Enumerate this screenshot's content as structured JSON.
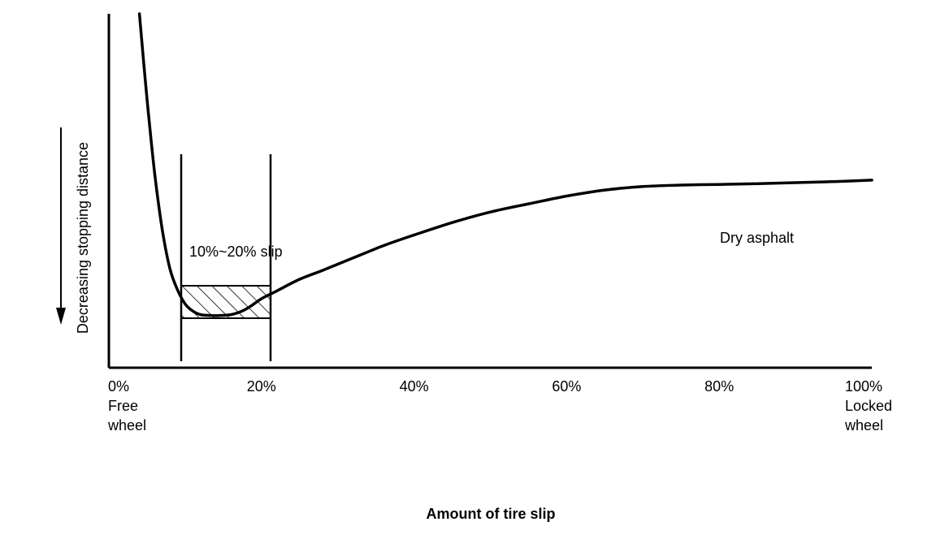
{
  "chart_data": {
    "type": "line",
    "title": "",
    "xlabel": "Amount of tire slip",
    "ylabel": "Decreasing stopping distance",
    "xlim": [
      0,
      100
    ],
    "x_ticks": [
      {
        "value": 0,
        "label": "0%",
        "sublabel": [
          "Free",
          "wheel"
        ]
      },
      {
        "value": 20,
        "label": "20%",
        "sublabel": []
      },
      {
        "value": 40,
        "label": "40%",
        "sublabel": []
      },
      {
        "value": 60,
        "label": "60%",
        "sublabel": []
      },
      {
        "value": 80,
        "label": "80%",
        "sublabel": []
      },
      {
        "value": 100,
        "label": "100%",
        "sublabel": [
          "Locked",
          "wheel"
        ]
      }
    ],
    "grid": false,
    "legend": "none",
    "series": [
      {
        "name": "Dry asphalt",
        "x": [
          4,
          5,
          6,
          7,
          8,
          9,
          10,
          11,
          12,
          13,
          14,
          15,
          16,
          17,
          18,
          19,
          20,
          22,
          25,
          28,
          32,
          36,
          40,
          45,
          50,
          55,
          60,
          65,
          70,
          75,
          80,
          85,
          90,
          95,
          100
        ],
        "y": [
          100,
          76,
          55,
          39,
          28,
          22,
          18,
          16,
          15,
          14.8,
          14.7,
          14.8,
          15,
          15.6,
          16.6,
          18,
          19.5,
          21.7,
          25,
          27.5,
          31,
          34.5,
          37.5,
          41,
          44,
          46.3,
          48.5,
          50.2,
          51.2,
          51.6,
          51.8,
          52,
          52.3,
          52.6,
          53
        ]
      }
    ],
    "annotations": {
      "band_label": "10%~20% slip",
      "band_x": [
        9.5,
        21
      ],
      "band_y": [
        15,
        25
      ],
      "direction": "decreasing-down"
    },
    "colors": {
      "line": "#000000",
      "background": "#ffffff"
    }
  }
}
